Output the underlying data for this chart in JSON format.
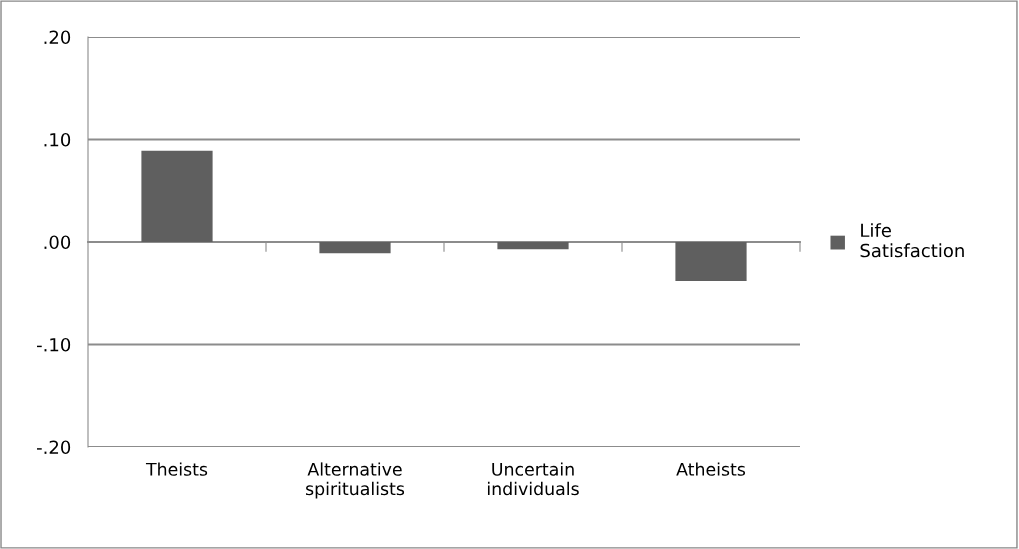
{
  "chart_data": {
    "type": "bar",
    "categories": [
      "Theists",
      "Alternative\nspiritualists",
      "Uncertain\nindividuals",
      "Atheists"
    ],
    "series": [
      {
        "name": "Life\nSatisfaction",
        "color": "#5f5f5f",
        "values": [
          0.089,
          -0.011,
          -0.007,
          -0.038
        ]
      }
    ],
    "ylim": [
      -0.2,
      0.2
    ],
    "yticks": [
      {
        "value": -0.2,
        "label": "-.20"
      },
      {
        "value": -0.1,
        "label": "-.10"
      },
      {
        "value": 0,
        "label": ".00"
      },
      {
        "value": 0.1,
        "label": ".10"
      },
      {
        "value": 0.2,
        "label": ".20"
      }
    ],
    "grid": "y",
    "legend": "right"
  }
}
